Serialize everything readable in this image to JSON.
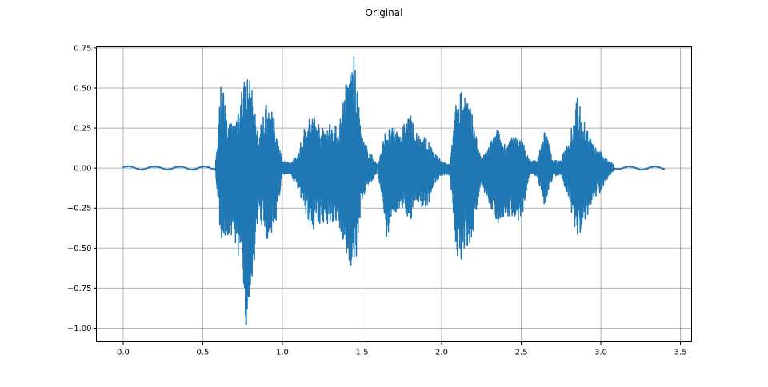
{
  "chart_data": {
    "type": "line",
    "title": "Original",
    "xlabel": "",
    "ylabel": "",
    "xlim": [
      -0.168,
      3.57
    ],
    "ylim": [
      -1.085,
      0.757
    ],
    "grid": true,
    "series_color": "#1f77b4",
    "x_ticks": [
      "0.0",
      "0.5",
      "1.0",
      "1.5",
      "2.0",
      "2.5",
      "3.0",
      "3.5"
    ],
    "y_ticks": [
      "0.75",
      "0.50",
      "0.25",
      "0.00",
      "−0.25",
      "−0.50",
      "−0.75",
      "−1.00"
    ],
    "x_tick_values": [
      0,
      0.5,
      1,
      1.5,
      2,
      2.5,
      3,
      3.5
    ],
    "y_tick_values": [
      0.75,
      0.5,
      0.25,
      0,
      -0.25,
      -0.5,
      -0.75,
      -1.0
    ],
    "envelope": {
      "t": [
        0,
        0.05,
        0.1,
        0.15,
        0.2,
        0.25,
        0.3,
        0.35,
        0.4,
        0.45,
        0.5,
        0.55,
        0.58,
        0.6,
        0.62,
        0.65,
        0.7,
        0.75,
        0.77,
        0.8,
        0.85,
        0.9,
        0.95,
        1.0,
        1.05,
        1.1,
        1.15,
        1.2,
        1.25,
        1.3,
        1.35,
        1.4,
        1.45,
        1.5,
        1.55,
        1.6,
        1.65,
        1.7,
        1.75,
        1.8,
        1.85,
        1.9,
        1.95,
        2.0,
        2.05,
        2.1,
        2.15,
        2.2,
        2.25,
        2.3,
        2.35,
        2.4,
        2.45,
        2.5,
        2.55,
        2.6,
        2.65,
        2.7,
        2.75,
        2.8,
        2.85,
        2.9,
        2.95,
        3.0,
        3.05,
        3.1,
        3.15,
        3.2,
        3.25,
        3.3,
        3.35,
        3.4
      ],
      "upper": [
        0.02,
        0.01,
        0.01,
        0.015,
        0.01,
        0.015,
        0.01,
        0.01,
        0.01,
        0.01,
        0.01,
        0.015,
        0.02,
        0.35,
        0.62,
        0.3,
        0.3,
        0.55,
        0.6,
        0.55,
        0.2,
        0.45,
        0.3,
        0.05,
        0.03,
        0.1,
        0.3,
        0.35,
        0.25,
        0.3,
        0.25,
        0.55,
        0.7,
        0.2,
        0.1,
        0.02,
        0.25,
        0.25,
        0.25,
        0.35,
        0.2,
        0.2,
        0.1,
        0.05,
        0.02,
        0.5,
        0.5,
        0.3,
        0.05,
        0.15,
        0.25,
        0.15,
        0.2,
        0.2,
        0.05,
        0.05,
        0.25,
        0.05,
        0.05,
        0.2,
        0.45,
        0.3,
        0.15,
        0.1,
        0.05,
        0.02,
        0.01,
        0.01,
        0.01,
        0.01,
        0.01,
        0.005
      ],
      "lower": [
        -0.01,
        -0.01,
        -0.01,
        -0.01,
        -0.01,
        -0.01,
        -0.01,
        -0.01,
        -0.01,
        -0.01,
        -0.01,
        -0.015,
        -0.02,
        -0.35,
        -0.45,
        -0.45,
        -0.45,
        -0.75,
        -1.0,
        -0.85,
        -0.3,
        -0.45,
        -0.4,
        -0.05,
        -0.03,
        -0.15,
        -0.3,
        -0.4,
        -0.35,
        -0.35,
        -0.35,
        -0.55,
        -0.72,
        -0.2,
        -0.1,
        -0.02,
        -0.45,
        -0.3,
        -0.25,
        -0.35,
        -0.2,
        -0.3,
        -0.1,
        -0.05,
        -0.05,
        -0.6,
        -0.55,
        -0.4,
        -0.1,
        -0.25,
        -0.35,
        -0.3,
        -0.3,
        -0.35,
        -0.05,
        -0.05,
        -0.25,
        -0.05,
        -0.05,
        -0.2,
        -0.45,
        -0.35,
        -0.2,
        -0.15,
        -0.05,
        -0.01,
        -0.01,
        -0.01,
        -0.01,
        -0.01,
        -0.01,
        -0.005
      ]
    }
  }
}
